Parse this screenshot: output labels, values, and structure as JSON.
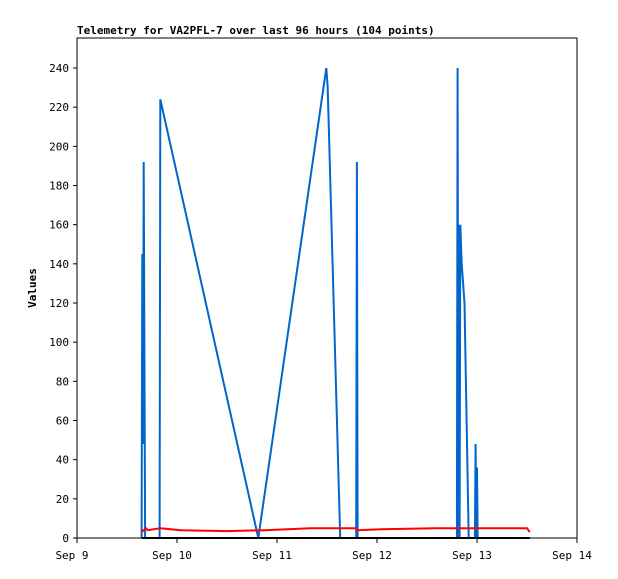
{
  "chart_data": {
    "type": "line",
    "title": "Telemetry for VA2PFL-7 over last 96 hours (104 points)",
    "xlabel": "",
    "ylabel": "Values",
    "x_ticks": [
      "Sep 9",
      "Sep 10",
      "Sep 11",
      "Sep 12",
      "Sep 13",
      "Sep 14"
    ],
    "xlim": [
      "09-09 00:00",
      "09-14 00:00"
    ],
    "ylim": [
      0,
      255
    ],
    "y_ticks": [
      0,
      20,
      40,
      60,
      80,
      100,
      120,
      140,
      160,
      180,
      200,
      220,
      240
    ],
    "grid": false,
    "series": [
      {
        "color": "#0066cc",
        "points": [
          [
            "09-09 15:30",
            0
          ],
          [
            "09-09 15:40",
            145
          ],
          [
            "09-09 15:50",
            48
          ],
          [
            "09-09 16:00",
            192
          ],
          [
            "09-09 16:10",
            97
          ],
          [
            "09-09 16:20",
            0
          ],
          [
            "09-09 19:50",
            0
          ],
          [
            "09-09 20:00",
            224
          ],
          [
            "09-10 19:30",
            0
          ],
          [
            "09-11 11:50",
            240
          ],
          [
            "09-11 12:10",
            230
          ],
          [
            "09-11 15:10",
            0
          ],
          [
            "09-11 19:00",
            0
          ],
          [
            "09-11 19:10",
            192
          ],
          [
            "09-11 19:20",
            0
          ],
          [
            "09-12 19:10",
            0
          ],
          [
            "09-12 19:20",
            240
          ],
          [
            "09-12 19:30",
            0
          ],
          [
            "09-12 19:40",
            160
          ],
          [
            "09-12 19:50",
            0
          ],
          [
            "09-12 20:00",
            160
          ],
          [
            "09-12 20:20",
            140
          ],
          [
            "09-12 21:00",
            120
          ],
          [
            "09-12 21:30",
            60
          ],
          [
            "09-12 22:00",
            0
          ],
          [
            "09-12 23:30",
            0
          ],
          [
            "09-12 23:40",
            48
          ],
          [
            "09-12 23:50",
            0
          ],
          [
            "09-13 00:00",
            36
          ],
          [
            "09-13 00:10",
            0
          ]
        ]
      },
      {
        "color": "#ff0000",
        "points": [
          [
            "09-09 15:30",
            3
          ],
          [
            "09-09 16:00",
            4
          ],
          [
            "09-09 16:30",
            5
          ],
          [
            "09-09 17:00",
            4
          ],
          [
            "09-09 20:00",
            5
          ],
          [
            "09-10 01:00",
            4
          ],
          [
            "09-10 12:00",
            3.5
          ],
          [
            "09-10 21:00",
            4
          ],
          [
            "09-11 08:00",
            5
          ],
          [
            "09-11 19:00",
            5
          ],
          [
            "09-11 19:20",
            4
          ],
          [
            "09-12 01:00",
            4.5
          ],
          [
            "09-12 14:00",
            5
          ],
          [
            "09-13 12:00",
            5
          ],
          [
            "09-13 12:40",
            3
          ]
        ]
      },
      {
        "color": "#000000",
        "points": [
          [
            "09-09 15:30",
            0
          ],
          [
            "09-13 12:40",
            0
          ]
        ]
      }
    ]
  }
}
